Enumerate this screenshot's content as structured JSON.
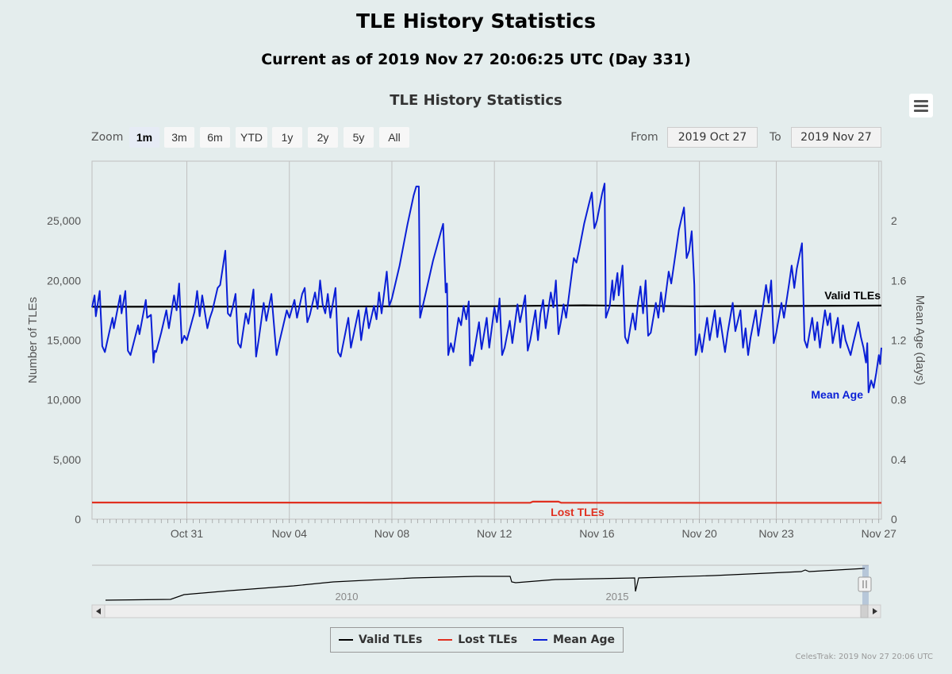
{
  "header": {
    "title": "TLE History Statistics",
    "subtitle": "Current as of 2019 Nov 27 20:06:25 UTC (Day 331)"
  },
  "chart_title": "TLE History Statistics",
  "range_selector": {
    "zoom_label": "Zoom",
    "buttons": [
      "1m",
      "3m",
      "6m",
      "YTD",
      "1y",
      "2y",
      "5y",
      "All"
    ],
    "active": "1m",
    "from_label": "From",
    "from_value": "2019 Oct 27",
    "to_label": "To",
    "to_value": "2019 Nov 27"
  },
  "legend": {
    "valid": "Valid TLEs",
    "lost": "Lost TLEs",
    "mean_age": "Mean Age"
  },
  "credits": "CelesTrak: 2019 Nov 27 20:06 UTC",
  "colors": {
    "valid": "#000000",
    "lost": "#e03020",
    "mean_age": "#0a1fd6",
    "background": "#e4eded",
    "grid": "#c0c0c0"
  },
  "chart_data": {
    "type": "line",
    "title": "TLE History Statistics",
    "x_range": [
      "2019-10-27",
      "2019-11-27"
    ],
    "x_start_day": 27.3,
    "x_end_day": 58.1,
    "x_ticks": [
      {
        "label": "Oct 31",
        "day": 31
      },
      {
        "label": "Nov 04",
        "day": 35
      },
      {
        "label": "Nov 08",
        "day": 39
      },
      {
        "label": "Nov 12",
        "day": 43
      },
      {
        "label": "Nov 16",
        "day": 47
      },
      {
        "label": "Nov 20",
        "day": 51
      },
      {
        "label": "Nov 23",
        "day": 54
      },
      {
        "label": "Nov 27",
        "day": 58
      }
    ],
    "y_left": {
      "label": "Number of TLEs",
      "min": 0,
      "max": 30000,
      "ticks": [
        0,
        5000,
        10000,
        15000,
        20000,
        25000
      ],
      "tick_labels": [
        "0",
        "5,000",
        "10,000",
        "15,000",
        "20,000",
        "25,000"
      ]
    },
    "y_right": {
      "label": "Mean Age (days)",
      "min": 0,
      "max": 2.4,
      "ticks": [
        0,
        0.4,
        0.8,
        1.2,
        1.6,
        2
      ],
      "tick_labels": [
        "0",
        "0.4",
        "0.8",
        "1.2",
        "1.6",
        "2"
      ]
    },
    "series": [
      {
        "name": "Valid TLEs",
        "axis": "left",
        "label": "Valid TLEs",
        "points": [
          [
            27.3,
            17800
          ],
          [
            35,
            17820
          ],
          [
            43,
            17850
          ],
          [
            46.5,
            17920
          ],
          [
            48,
            17880
          ],
          [
            51,
            17840
          ],
          [
            55,
            17870
          ],
          [
            58.1,
            17900
          ]
        ]
      },
      {
        "name": "Lost TLEs",
        "axis": "left",
        "label": "Lost TLEs",
        "points": [
          [
            27.3,
            1400
          ],
          [
            43,
            1380
          ],
          [
            44.4,
            1380
          ],
          [
            44.5,
            1470
          ],
          [
            45.5,
            1470
          ],
          [
            45.6,
            1380
          ],
          [
            58.1,
            1370
          ]
        ]
      },
      {
        "name": "Mean Age",
        "axis": "right",
        "label": "Mean Age",
        "points": [
          [
            27.3,
            1.42
          ],
          [
            27.4,
            1.5
          ],
          [
            27.45,
            1.36
          ],
          [
            27.6,
            1.53
          ],
          [
            27.7,
            1.16
          ],
          [
            27.8,
            1.12
          ],
          [
            28.1,
            1.35
          ],
          [
            28.15,
            1.28
          ],
          [
            28.4,
            1.5
          ],
          [
            28.45,
            1.38
          ],
          [
            28.6,
            1.53
          ],
          [
            28.7,
            1.13
          ],
          [
            28.8,
            1.1
          ],
          [
            29.1,
            1.3
          ],
          [
            29.15,
            1.24
          ],
          [
            29.4,
            1.47
          ],
          [
            29.45,
            1.35
          ],
          [
            29.6,
            1.37
          ],
          [
            29.7,
            1.05
          ],
          [
            29.75,
            1.13
          ],
          [
            29.8,
            1.12
          ],
          [
            30.0,
            1.25
          ],
          [
            30.2,
            1.4
          ],
          [
            30.3,
            1.28
          ],
          [
            30.5,
            1.5
          ],
          [
            30.6,
            1.4
          ],
          [
            30.7,
            1.58
          ],
          [
            30.8,
            1.18
          ],
          [
            30.9,
            1.23
          ],
          [
            31.0,
            1.2
          ],
          [
            31.3,
            1.39
          ],
          [
            31.4,
            1.53
          ],
          [
            31.5,
            1.36
          ],
          [
            31.6,
            1.5
          ],
          [
            31.8,
            1.28
          ],
          [
            31.9,
            1.35
          ],
          [
            32.0,
            1.4
          ],
          [
            32.2,
            1.55
          ],
          [
            32.3,
            1.57
          ],
          [
            32.5,
            1.8
          ],
          [
            32.6,
            1.38
          ],
          [
            32.7,
            1.36
          ],
          [
            32.8,
            1.43
          ],
          [
            32.9,
            1.51
          ],
          [
            33.0,
            1.18
          ],
          [
            33.1,
            1.15
          ],
          [
            33.3,
            1.38
          ],
          [
            33.4,
            1.31
          ],
          [
            33.6,
            1.54
          ],
          [
            33.7,
            1.09
          ],
          [
            33.8,
            1.2
          ],
          [
            34.0,
            1.45
          ],
          [
            34.1,
            1.33
          ],
          [
            34.3,
            1.51
          ],
          [
            34.4,
            1.3
          ],
          [
            34.5,
            1.1
          ],
          [
            34.6,
            1.18
          ],
          [
            34.9,
            1.4
          ],
          [
            35.0,
            1.35
          ],
          [
            35.2,
            1.47
          ],
          [
            35.3,
            1.35
          ],
          [
            35.5,
            1.51
          ],
          [
            35.6,
            1.55
          ],
          [
            35.7,
            1.32
          ],
          [
            35.8,
            1.37
          ],
          [
            36.0,
            1.52
          ],
          [
            36.1,
            1.41
          ],
          [
            36.2,
            1.6
          ],
          [
            36.3,
            1.44
          ],
          [
            36.4,
            1.38
          ],
          [
            36.5,
            1.51
          ],
          [
            36.6,
            1.35
          ],
          [
            36.8,
            1.55
          ],
          [
            36.9,
            1.12
          ],
          [
            37.0,
            1.09
          ],
          [
            37.3,
            1.35
          ],
          [
            37.4,
            1.15
          ],
          [
            37.7,
            1.4
          ],
          [
            37.8,
            1.2
          ],
          [
            37.9,
            1.32
          ],
          [
            38.0,
            1.42
          ],
          [
            38.1,
            1.28
          ],
          [
            38.3,
            1.43
          ],
          [
            38.4,
            1.34
          ],
          [
            38.5,
            1.52
          ],
          [
            38.6,
            1.38
          ],
          [
            38.8,
            1.66
          ],
          [
            38.9,
            1.43
          ],
          [
            39.0,
            1.48
          ],
          [
            39.3,
            1.7
          ],
          [
            39.6,
            1.97
          ],
          [
            39.85,
            2.17
          ],
          [
            39.95,
            2.23
          ],
          [
            40.05,
            2.23
          ],
          [
            40.1,
            1.35
          ],
          [
            40.3,
            1.5
          ],
          [
            40.6,
            1.73
          ],
          [
            40.9,
            1.92
          ],
          [
            41.0,
            1.98
          ],
          [
            41.1,
            1.52
          ],
          [
            41.15,
            1.58
          ],
          [
            41.2,
            1.1
          ],
          [
            41.3,
            1.18
          ],
          [
            41.4,
            1.12
          ],
          [
            41.6,
            1.35
          ],
          [
            41.7,
            1.3
          ],
          [
            41.8,
            1.43
          ],
          [
            41.9,
            1.34
          ],
          [
            42.0,
            1.46
          ],
          [
            42.05,
            1.03
          ],
          [
            42.1,
            1.1
          ],
          [
            42.15,
            1.06
          ],
          [
            42.4,
            1.32
          ],
          [
            42.5,
            1.14
          ],
          [
            42.7,
            1.35
          ],
          [
            42.8,
            1.15
          ],
          [
            43.0,
            1.42
          ],
          [
            43.1,
            1.32
          ],
          [
            43.2,
            1.48
          ],
          [
            43.3,
            1.1
          ],
          [
            43.4,
            1.15
          ],
          [
            43.6,
            1.33
          ],
          [
            43.7,
            1.18
          ],
          [
            43.9,
            1.44
          ],
          [
            44.0,
            1.32
          ],
          [
            44.2,
            1.5
          ],
          [
            44.3,
            1.13
          ],
          [
            44.4,
            1.2
          ],
          [
            44.6,
            1.4
          ],
          [
            44.7,
            1.2
          ],
          [
            44.8,
            1.38
          ],
          [
            44.9,
            1.47
          ],
          [
            45.0,
            1.28
          ],
          [
            45.2,
            1.52
          ],
          [
            45.3,
            1.42
          ],
          [
            45.4,
            1.6
          ],
          [
            45.5,
            1.24
          ],
          [
            45.6,
            1.33
          ],
          [
            45.7,
            1.44
          ],
          [
            45.8,
            1.35
          ],
          [
            46.0,
            1.62
          ],
          [
            46.1,
            1.75
          ],
          [
            46.2,
            1.72
          ],
          [
            46.3,
            1.8
          ],
          [
            46.5,
            1.98
          ],
          [
            46.7,
            2.12
          ],
          [
            46.8,
            2.19
          ],
          [
            46.9,
            1.95
          ],
          [
            47.0,
            2.0
          ],
          [
            47.2,
            2.18
          ],
          [
            47.3,
            2.25
          ],
          [
            47.35,
            1.35
          ],
          [
            47.5,
            1.43
          ],
          [
            47.6,
            1.6
          ],
          [
            47.65,
            1.47
          ],
          [
            47.8,
            1.65
          ],
          [
            47.85,
            1.5
          ],
          [
            48.0,
            1.7
          ],
          [
            48.1,
            1.22
          ],
          [
            48.2,
            1.18
          ],
          [
            48.4,
            1.38
          ],
          [
            48.5,
            1.27
          ],
          [
            48.6,
            1.45
          ],
          [
            48.7,
            1.56
          ],
          [
            48.8,
            1.38
          ],
          [
            48.9,
            1.6
          ],
          [
            49.0,
            1.23
          ],
          [
            49.1,
            1.25
          ],
          [
            49.3,
            1.45
          ],
          [
            49.4,
            1.35
          ],
          [
            49.5,
            1.52
          ],
          [
            49.6,
            1.39
          ],
          [
            49.8,
            1.66
          ],
          [
            49.9,
            1.58
          ],
          [
            50.1,
            1.82
          ],
          [
            50.2,
            1.94
          ],
          [
            50.4,
            2.09
          ],
          [
            50.5,
            1.75
          ],
          [
            50.6,
            1.8
          ],
          [
            50.7,
            1.93
          ],
          [
            50.8,
            1.57
          ],
          [
            50.85,
            1.1
          ],
          [
            50.9,
            1.13
          ],
          [
            51.0,
            1.24
          ],
          [
            51.1,
            1.12
          ],
          [
            51.3,
            1.35
          ],
          [
            51.4,
            1.2
          ],
          [
            51.6,
            1.4
          ],
          [
            51.7,
            1.22
          ],
          [
            51.8,
            1.35
          ],
          [
            52.0,
            1.12
          ],
          [
            52.1,
            1.25
          ],
          [
            52.3,
            1.45
          ],
          [
            52.4,
            1.26
          ],
          [
            52.6,
            1.4
          ],
          [
            52.7,
            1.15
          ],
          [
            52.8,
            1.28
          ],
          [
            52.9,
            1.1
          ],
          [
            53.0,
            1.22
          ],
          [
            53.2,
            1.4
          ],
          [
            53.3,
            1.23
          ],
          [
            53.5,
            1.45
          ],
          [
            53.6,
            1.57
          ],
          [
            53.7,
            1.45
          ],
          [
            53.8,
            1.6
          ],
          [
            53.9,
            1.18
          ],
          [
            54.0,
            1.25
          ],
          [
            54.2,
            1.45
          ],
          [
            54.3,
            1.35
          ],
          [
            54.5,
            1.58
          ],
          [
            54.6,
            1.7
          ],
          [
            54.7,
            1.55
          ],
          [
            54.8,
            1.68
          ],
          [
            55.0,
            1.85
          ],
          [
            55.1,
            1.2
          ],
          [
            55.2,
            1.15
          ],
          [
            55.4,
            1.35
          ],
          [
            55.5,
            1.2
          ],
          [
            55.6,
            1.32
          ],
          [
            55.7,
            1.15
          ],
          [
            55.9,
            1.4
          ],
          [
            56.0,
            1.3
          ],
          [
            56.1,
            1.38
          ],
          [
            56.2,
            1.18
          ],
          [
            56.4,
            1.35
          ],
          [
            56.5,
            1.15
          ],
          [
            56.6,
            1.3
          ],
          [
            56.7,
            1.2
          ],
          [
            56.9,
            1.1
          ],
          [
            57.0,
            1.18
          ],
          [
            57.1,
            1.25
          ],
          [
            57.2,
            1.32
          ],
          [
            57.3,
            1.22
          ],
          [
            57.4,
            1.15
          ],
          [
            57.5,
            1.05
          ],
          [
            57.55,
            1.18
          ],
          [
            57.6,
            0.85
          ],
          [
            57.7,
            0.93
          ],
          [
            57.8,
            0.88
          ],
          [
            57.9,
            0.98
          ],
          [
            58.0,
            1.1
          ],
          [
            58.05,
            1.04
          ],
          [
            58.1,
            1.15
          ]
        ]
      }
    ],
    "navigator": {
      "x_labels": [
        "2010",
        "2015"
      ],
      "series": "Valid TLEs (full history)"
    }
  }
}
